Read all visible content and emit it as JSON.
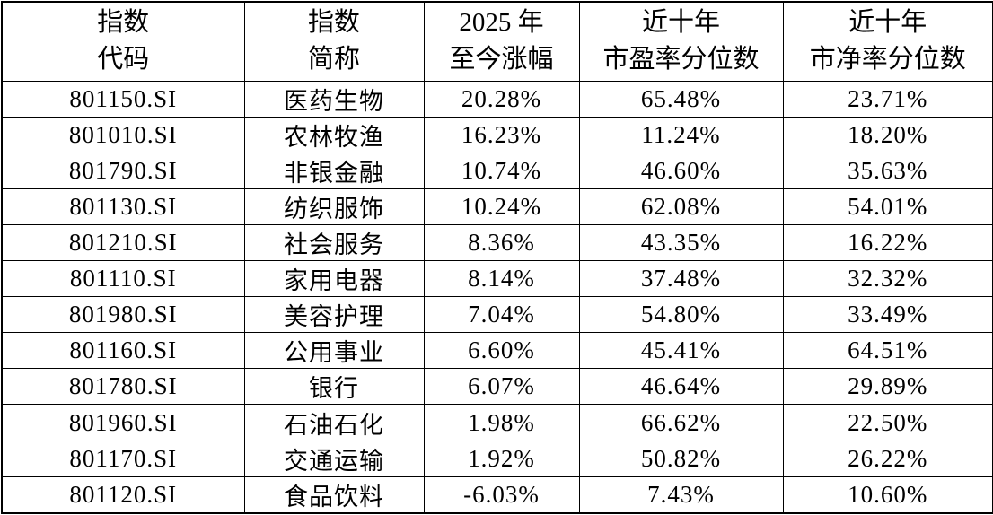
{
  "chart_data": {
    "type": "table",
    "columns": [
      {
        "id": "code",
        "line1": "指数",
        "line2": "代码"
      },
      {
        "id": "name",
        "line1": "指数",
        "line2": "简称"
      },
      {
        "id": "ytd",
        "line1": "2025 年",
        "line2": "至今涨幅"
      },
      {
        "id": "pe",
        "line1": "近十年",
        "line2": "市盈率分位数"
      },
      {
        "id": "pb",
        "line1": "近十年",
        "line2": "市净率分位数"
      }
    ],
    "rows": [
      {
        "code": "801150.SI",
        "name": "医药生物",
        "ytd": "20.28%",
        "pe": "65.48%",
        "pb": "23.71%"
      },
      {
        "code": "801010.SI",
        "name": "农林牧渔",
        "ytd": "16.23%",
        "pe": "11.24%",
        "pb": "18.20%"
      },
      {
        "code": "801790.SI",
        "name": "非银金融",
        "ytd": "10.74%",
        "pe": "46.60%",
        "pb": "35.63%"
      },
      {
        "code": "801130.SI",
        "name": "纺织服饰",
        "ytd": "10.24%",
        "pe": "62.08%",
        "pb": "54.01%"
      },
      {
        "code": "801210.SI",
        "name": "社会服务",
        "ytd": "8.36%",
        "pe": "43.35%",
        "pb": "16.22%"
      },
      {
        "code": "801110.SI",
        "name": "家用电器",
        "ytd": "8.14%",
        "pe": "37.48%",
        "pb": "32.32%"
      },
      {
        "code": "801980.SI",
        "name": "美容护理",
        "ytd": "7.04%",
        "pe": "54.80%",
        "pb": "33.49%"
      },
      {
        "code": "801160.SI",
        "name": "公用事业",
        "ytd": "6.60%",
        "pe": "45.41%",
        "pb": "64.51%"
      },
      {
        "code": "801780.SI",
        "name": "银行",
        "ytd": "6.07%",
        "pe": "46.64%",
        "pb": "29.89%"
      },
      {
        "code": "801960.SI",
        "name": "石油石化",
        "ytd": "1.98%",
        "pe": "66.62%",
        "pb": "22.50%"
      },
      {
        "code": "801170.SI",
        "name": "交通运输",
        "ytd": "1.92%",
        "pe": "50.82%",
        "pb": "26.22%"
      },
      {
        "code": "801120.SI",
        "name": "食品饮料",
        "ytd": "-6.03%",
        "pe": "7.43%",
        "pb": "10.60%"
      }
    ],
    "colors": {
      "border": "#000000",
      "text": "#000000",
      "background": "#ffffff"
    }
  }
}
